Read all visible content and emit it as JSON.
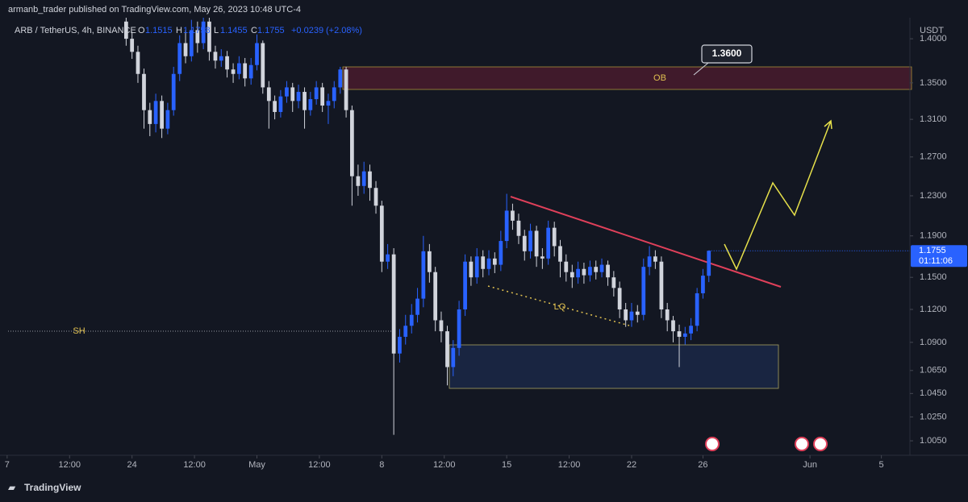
{
  "header": {
    "publisher": "armanb_trader published on TradingView.com, May 26, 2023 10:48 UTC-4"
  },
  "footer": {
    "brand": "TradingView"
  },
  "chart_data": {
    "type": "candlestick",
    "symbol": "ARB / TetherUS, 4h, BINANCE",
    "ohlc_labels": [
      "O",
      "H",
      "L",
      "C"
    ],
    "change": "+0.0239",
    "change_percent": "(+2.08%)",
    "currency": "USDT",
    "countdown": "01:11:06",
    "up_color": "#2962ff",
    "down_color": "#d1d4dc",
    "x": [
      23.67,
      24,
      24.33,
      24.67,
      25,
      25.33,
      25.67,
      26,
      26.33,
      26.67,
      27,
      27.33,
      27.67,
      28,
      28.33,
      28.67,
      29,
      29.33,
      29.67,
      30,
      30.33,
      30.67,
      31,
      31.33,
      31.67,
      32,
      32.33,
      32.67,
      33,
      33.33,
      33.67,
      34,
      34.33,
      34.67,
      35,
      35.33,
      35.67,
      36,
      36.33,
      36.67,
      37,
      37.33,
      37.67,
      38,
      38.33,
      38.67,
      39,
      39.33,
      39.67,
      40,
      40.33,
      40.67,
      41,
      41.33,
      41.67,
      42,
      42.33,
      42.67,
      43,
      43.33,
      43.67,
      44,
      44.33,
      44.67,
      45,
      45.33,
      45.67,
      46,
      46.33,
      46.67,
      47,
      47.33,
      47.67,
      48,
      48.33,
      48.67,
      49,
      49.33,
      49.67,
      50,
      50.33,
      50.67,
      51,
      51.33,
      51.67,
      52,
      52.33,
      52.67,
      53,
      53.33,
      53.67,
      54,
      54.33,
      54.67,
      55,
      55.33,
      55.67,
      56,
      56.33
    ],
    "open": [
      1.42,
      1.4,
      1.385,
      1.36,
      1.32,
      1.305,
      1.33,
      1.3,
      1.32,
      1.36,
      1.395,
      1.38,
      1.41,
      1.395,
      1.42,
      1.385,
      1.375,
      1.38,
      1.365,
      1.36,
      1.372,
      1.355,
      1.37,
      1.395,
      1.345,
      1.33,
      1.318,
      1.335,
      1.345,
      1.33,
      1.34,
      1.32,
      1.332,
      1.345,
      1.325,
      1.33,
      1.345,
      1.365,
      1.32,
      1.25,
      1.24,
      1.255,
      1.238,
      1.22,
      1.165,
      1.172,
      1.08,
      1.095,
      1.105,
      1.115,
      1.13,
      1.175,
      1.155,
      1.11,
      1.1,
      1.068,
      1.085,
      1.12,
      1.165,
      1.15,
      1.17,
      1.158,
      1.168,
      1.162,
      1.185,
      1.215,
      1.205,
      1.19,
      1.175,
      1.195,
      1.17,
      1.168,
      1.198,
      1.18,
      1.165,
      1.155,
      1.15,
      1.158,
      1.152,
      1.16,
      1.155,
      1.162,
      1.15,
      1.14,
      1.12,
      1.11,
      1.118,
      1.115,
      1.16,
      1.17,
      1.165,
      1.12,
      1.11,
      1.1,
      1.095,
      1.098,
      1.105,
      1.135,
      1.1515
    ],
    "high": [
      1.43,
      1.408,
      1.392,
      1.366,
      1.328,
      1.338,
      1.336,
      1.328,
      1.368,
      1.404,
      1.41,
      1.422,
      1.42,
      1.43,
      1.425,
      1.392,
      1.388,
      1.386,
      1.372,
      1.38,
      1.378,
      1.378,
      1.405,
      1.398,
      1.352,
      1.336,
      1.342,
      1.352,
      1.35,
      1.348,
      1.345,
      1.34,
      1.352,
      1.35,
      1.338,
      1.352,
      1.368,
      1.368,
      1.325,
      1.262,
      1.265,
      1.262,
      1.245,
      1.225,
      1.182,
      1.178,
      1.102,
      1.115,
      1.125,
      1.14,
      1.19,
      1.182,
      1.16,
      1.118,
      1.105,
      1.092,
      1.128,
      1.172,
      1.17,
      1.178,
      1.176,
      1.176,
      1.174,
      1.195,
      1.232,
      1.222,
      1.212,
      1.196,
      1.202,
      1.2,
      1.178,
      1.205,
      1.204,
      1.186,
      1.172,
      1.162,
      1.165,
      1.164,
      1.166,
      1.166,
      1.168,
      1.166,
      1.156,
      1.146,
      1.126,
      1.126,
      1.124,
      1.168,
      1.18,
      1.176,
      1.17,
      1.126,
      1.114,
      1.106,
      1.104,
      1.112,
      1.14,
      1.158,
      1.1758
    ],
    "low": [
      1.392,
      1.377,
      1.35,
      1.3,
      1.292,
      1.296,
      1.29,
      1.294,
      1.314,
      1.352,
      1.372,
      1.374,
      1.384,
      1.388,
      1.375,
      1.366,
      1.368,
      1.356,
      1.35,
      1.354,
      1.346,
      1.348,
      1.364,
      1.338,
      1.3,
      1.31,
      1.312,
      1.328,
      1.318,
      1.322,
      1.3,
      1.314,
      1.326,
      1.318,
      1.305,
      1.322,
      1.338,
      1.312,
      1.22,
      1.23,
      1.232,
      1.225,
      1.212,
      1.155,
      1.158,
      1.01,
      1.072,
      1.088,
      1.098,
      1.108,
      1.122,
      1.145,
      1.1,
      1.09,
      1.052,
      1.06,
      1.078,
      1.114,
      1.142,
      1.144,
      1.15,
      1.152,
      1.154,
      1.156,
      1.178,
      1.196,
      1.182,
      1.166,
      1.168,
      1.16,
      1.158,
      1.162,
      1.17,
      1.15,
      1.146,
      1.14,
      1.144,
      1.144,
      1.146,
      1.148,
      1.15,
      1.142,
      1.132,
      1.112,
      1.104,
      1.104,
      1.108,
      1.11,
      1.152,
      1.158,
      1.112,
      1.1,
      1.09,
      1.068,
      1.088,
      1.092,
      1.1,
      1.13,
      1.1455
    ],
    "close": [
      1.4,
      1.385,
      1.36,
      1.32,
      1.305,
      1.33,
      1.3,
      1.32,
      1.36,
      1.395,
      1.38,
      1.41,
      1.395,
      1.42,
      1.385,
      1.375,
      1.38,
      1.365,
      1.36,
      1.372,
      1.355,
      1.37,
      1.395,
      1.345,
      1.33,
      1.318,
      1.335,
      1.345,
      1.33,
      1.34,
      1.32,
      1.332,
      1.345,
      1.325,
      1.33,
      1.345,
      1.365,
      1.32,
      1.25,
      1.24,
      1.255,
      1.238,
      1.22,
      1.165,
      1.172,
      1.08,
      1.095,
      1.105,
      1.115,
      1.13,
      1.175,
      1.155,
      1.11,
      1.1,
      1.068,
      1.085,
      1.12,
      1.165,
      1.15,
      1.17,
      1.158,
      1.168,
      1.162,
      1.185,
      1.215,
      1.205,
      1.19,
      1.175,
      1.195,
      1.17,
      1.168,
      1.198,
      1.18,
      1.165,
      1.155,
      1.15,
      1.158,
      1.152,
      1.16,
      1.155,
      1.162,
      1.15,
      1.14,
      1.12,
      1.11,
      1.118,
      1.115,
      1.16,
      1.17,
      1.165,
      1.12,
      1.11,
      1.1,
      1.095,
      1.098,
      1.105,
      1.135,
      1.1516,
      1.1755
    ],
    "xlim": [
      16.6,
      67.6
    ],
    "xticks": [
      {
        "value": 17,
        "label": "7"
      },
      {
        "value": 20.5,
        "label": "12:00"
      },
      24,
      {
        "value": 27.5,
        "label": "12:00"
      },
      {
        "value": 31,
        "label": "May"
      },
      {
        "value": 34.5,
        "label": "12:00"
      },
      {
        "value": 38,
        "label": "8"
      },
      {
        "value": 41.5,
        "label": "12:00"
      },
      {
        "value": 45,
        "label": "15"
      },
      {
        "value": 48.5,
        "label": "12:00"
      },
      {
        "value": 52,
        "label": "22"
      },
      {
        "value": 56,
        "label": "26"
      },
      {
        "value": 62,
        "label": "Jun"
      },
      {
        "value": 66,
        "label": "5"
      }
    ],
    "ylim": [
      0.9931,
      1.4245
    ],
    "log_scale": true,
    "yticks": [
      {
        "value": 1.4,
        "label": "1.4000"
      },
      {
        "value": 1.35,
        "label": "1.3500"
      },
      {
        "value": 1.31,
        "label": "1.3100"
      },
      {
        "value": 1.27,
        "label": "1.2700"
      },
      {
        "value": 1.23,
        "label": "1.2300"
      },
      {
        "value": 1.19,
        "label": "1.1900"
      },
      {
        "value": 1.15,
        "label": "1.1500"
      },
      {
        "value": 1.12,
        "label": "1.1200"
      },
      {
        "value": 1.09,
        "label": "1.0900"
      },
      {
        "value": 1.065,
        "label": "1.0650"
      },
      {
        "value": 1.045,
        "label": "1.0450"
      },
      {
        "value": 1.025,
        "label": "1.0250"
      },
      {
        "value": 1.005,
        "label": "1.0050"
      }
    ],
    "annotations": {
      "ob": "OB",
      "sh": "SH",
      "lq": "LQ",
      "target": "1.3600"
    }
  }
}
